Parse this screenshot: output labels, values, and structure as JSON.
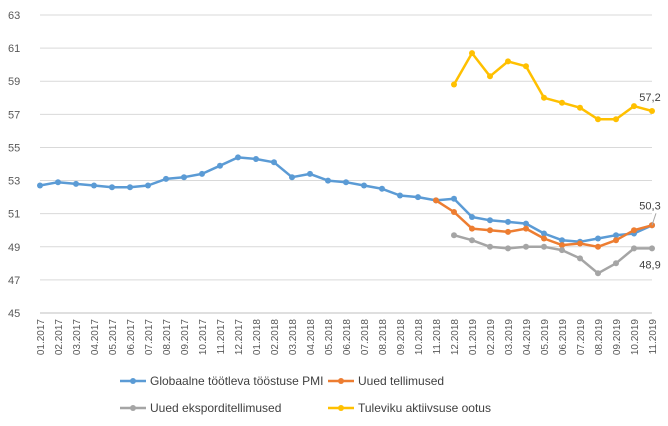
{
  "chart_data": {
    "type": "line",
    "ylim": [
      45,
      63
    ],
    "yticks": [
      45,
      47,
      49,
      51,
      53,
      55,
      57,
      59,
      61,
      63
    ],
    "grid": "horizontal",
    "legend_placement": "bottom",
    "categories": [
      "01.2017",
      "02.2017",
      "03.2017",
      "04.2017",
      "05.2017",
      "06.2017",
      "07.2017",
      "08.2017",
      "09.2017",
      "10.2017",
      "11.2017",
      "12.2017",
      "01.2018",
      "02.2018",
      "03.2018",
      "04.2018",
      "05.2018",
      "06.2018",
      "07.2018",
      "08.2018",
      "09.2018",
      "10.2018",
      "11.2018",
      "12.2018",
      "01.2019",
      "02.2019",
      "03.2019",
      "04.2019",
      "05.2019",
      "06.2019",
      "07.2019",
      "08.2019",
      "09.2019",
      "10.2019",
      "11.2019"
    ],
    "series": [
      {
        "name": "Globaalne töötleva tööstuse PMI",
        "color": "#5b9bd5",
        "values": [
          52.7,
          52.9,
          52.8,
          52.7,
          52.6,
          52.6,
          52.7,
          53.1,
          53.2,
          53.4,
          53.9,
          54.4,
          54.3,
          54.1,
          53.2,
          53.4,
          53.0,
          52.9,
          52.7,
          52.5,
          52.1,
          52.0,
          51.8,
          51.9,
          50.8,
          50.6,
          50.5,
          50.4,
          49.8,
          49.4,
          49.3,
          49.5,
          49.7,
          49.8,
          50.3
        ]
      },
      {
        "name": "Uued tellimused",
        "color": "#ed7d31",
        "values": [
          null,
          null,
          null,
          null,
          null,
          null,
          null,
          null,
          null,
          null,
          null,
          null,
          null,
          null,
          null,
          null,
          null,
          null,
          null,
          null,
          null,
          null,
          51.8,
          51.1,
          50.1,
          50.0,
          49.9,
          50.1,
          49.5,
          49.1,
          49.2,
          49.0,
          49.4,
          50.0,
          50.3
        ]
      },
      {
        "name": "Uued eksporditellimused",
        "color": "#a5a5a5",
        "values": [
          null,
          null,
          null,
          null,
          null,
          null,
          null,
          null,
          null,
          null,
          null,
          null,
          null,
          null,
          null,
          null,
          null,
          null,
          null,
          null,
          null,
          null,
          null,
          49.7,
          49.4,
          49.0,
          48.9,
          49.0,
          49.0,
          48.8,
          48.3,
          47.4,
          48.0,
          48.9,
          48.9
        ]
      },
      {
        "name": "Tuleviku aktiivsuse ootus",
        "color": "#ffc000",
        "values": [
          null,
          null,
          null,
          null,
          null,
          null,
          null,
          null,
          null,
          null,
          null,
          null,
          null,
          null,
          null,
          null,
          null,
          null,
          null,
          null,
          null,
          null,
          null,
          58.8,
          60.7,
          59.3,
          60.2,
          59.9,
          58.0,
          57.7,
          57.4,
          56.7,
          56.7,
          57.5,
          57.2
        ]
      }
    ],
    "end_labels": [
      {
        "series": 3,
        "text": "57,2"
      },
      {
        "series": 0,
        "text": "50,3"
      },
      {
        "series": 2,
        "text": "48,9"
      }
    ]
  }
}
